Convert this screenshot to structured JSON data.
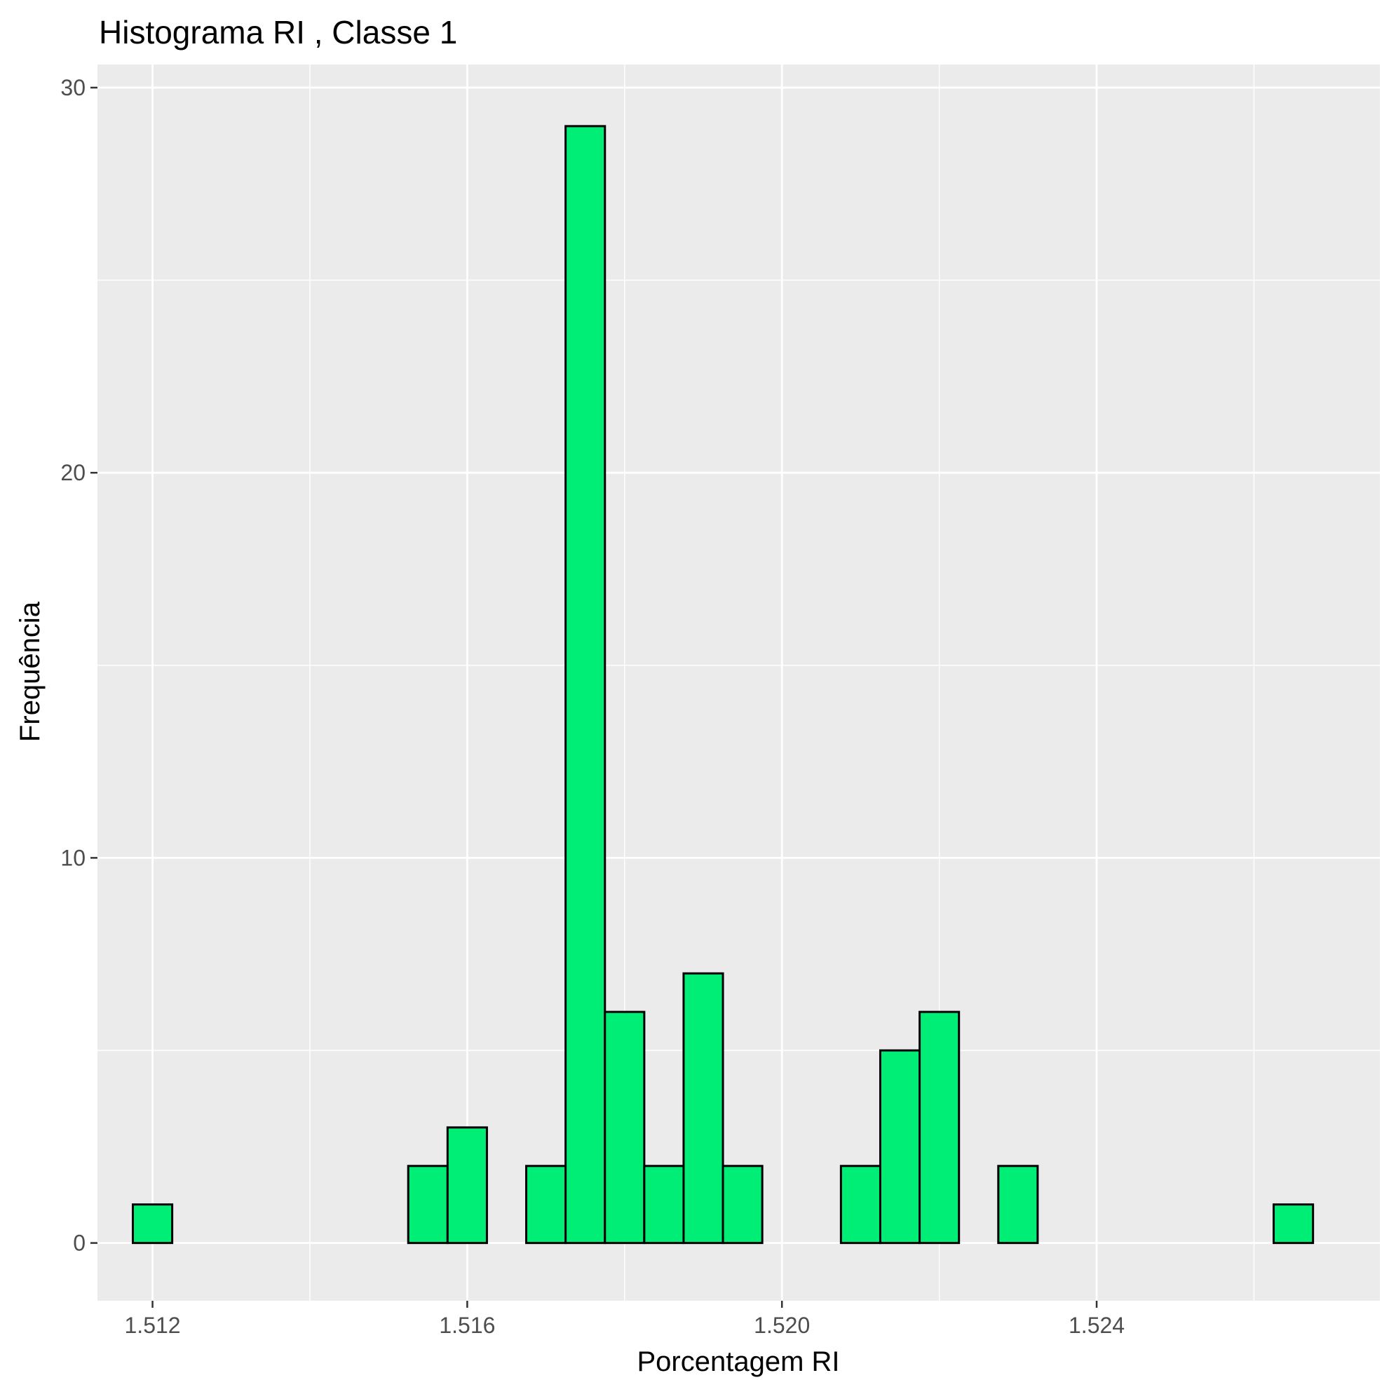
{
  "chart_data": {
    "type": "bar",
    "title": "Histograma  RI , Classe  1",
    "xlabel": "Porcentagem RI",
    "ylabel": "Frequência",
    "xlim": [
      1.5113,
      1.5276
    ],
    "ylim": [
      -1.5,
      30.6
    ],
    "x_ticks": [
      {
        "value": 1.512,
        "label": "1.512"
      },
      {
        "value": 1.516,
        "label": "1.516"
      },
      {
        "value": 1.52,
        "label": "1.520"
      },
      {
        "value": 1.524,
        "label": "1.524"
      }
    ],
    "y_ticks": [
      {
        "value": 0,
        "label": "0"
      },
      {
        "value": 10,
        "label": "10"
      },
      {
        "value": 20,
        "label": "20"
      },
      {
        "value": 30,
        "label": "30"
      }
    ],
    "bin_width": 0.0005,
    "bins": [
      {
        "x": 1.512,
        "count": 1
      },
      {
        "x": 1.5125,
        "count": 0
      },
      {
        "x": 1.513,
        "count": 0
      },
      {
        "x": 1.5135,
        "count": 0
      },
      {
        "x": 1.514,
        "count": 0
      },
      {
        "x": 1.5145,
        "count": 0
      },
      {
        "x": 1.515,
        "count": 0
      },
      {
        "x": 1.5155,
        "count": 2
      },
      {
        "x": 1.516,
        "count": 3
      },
      {
        "x": 1.5165,
        "count": 0
      },
      {
        "x": 1.517,
        "count": 2
      },
      {
        "x": 1.5175,
        "count": 29
      },
      {
        "x": 1.518,
        "count": 6
      },
      {
        "x": 1.5185,
        "count": 2
      },
      {
        "x": 1.519,
        "count": 7
      },
      {
        "x": 1.5195,
        "count": 2
      },
      {
        "x": 1.52,
        "count": 0
      },
      {
        "x": 1.5205,
        "count": 0
      },
      {
        "x": 1.521,
        "count": 2
      },
      {
        "x": 1.5215,
        "count": 5
      },
      {
        "x": 1.522,
        "count": 6
      },
      {
        "x": 1.5225,
        "count": 0
      },
      {
        "x": 1.523,
        "count": 2
      },
      {
        "x": 1.5235,
        "count": 0
      },
      {
        "x": 1.524,
        "count": 0
      },
      {
        "x": 1.5245,
        "count": 0
      },
      {
        "x": 1.525,
        "count": 0
      },
      {
        "x": 1.5255,
        "count": 0
      },
      {
        "x": 1.526,
        "count": 0
      },
      {
        "x": 1.5265,
        "count": 1
      }
    ],
    "grid": true,
    "fill_color": "#00EE76",
    "outline_color": "#000000",
    "panel_background": "#EBEBEB",
    "grid_color": "#FFFFFF"
  }
}
